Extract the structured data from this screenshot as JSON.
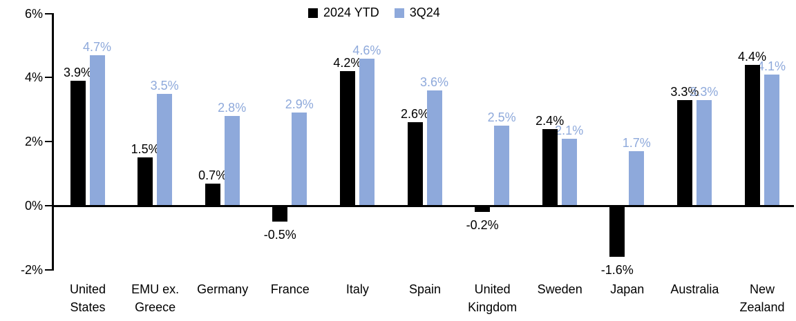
{
  "chart_data": {
    "type": "bar",
    "title": "",
    "categories": [
      "United States",
      "EMU ex. Greece",
      "Germany",
      "France",
      "Italy",
      "Spain",
      "United Kingdom",
      "Sweden",
      "Japan",
      "Australia",
      "New Zealand"
    ],
    "category_label_lines": [
      [
        "United",
        "States"
      ],
      [
        "EMU ex.",
        "Greece"
      ],
      [
        "Germany"
      ],
      [
        "France"
      ],
      [
        "Italy"
      ],
      [
        "Spain"
      ],
      [
        "United",
        "Kingdom"
      ],
      [
        "Sweden"
      ],
      [
        "Japan"
      ],
      [
        "Australia"
      ],
      [
        "New",
        "Zealand"
      ]
    ],
    "series": [
      {
        "name": "2024 YTD",
        "color": "#000000",
        "values": [
          3.9,
          1.5,
          0.7,
          -0.5,
          4.2,
          2.6,
          -0.2,
          2.4,
          -1.6,
          3.3,
          4.4
        ]
      },
      {
        "name": "3Q24",
        "color": "#8EA9DB",
        "values": [
          4.7,
          3.5,
          2.8,
          2.9,
          4.6,
          3.6,
          2.5,
          2.1,
          1.7,
          3.3,
          4.1
        ]
      }
    ],
    "data_labels": true,
    "value_label_suffix": "%",
    "value_label_decimals": 1,
    "y_axis": {
      "ticks": [
        6,
        4,
        2,
        0,
        -2
      ],
      "tick_labels": [
        "6%",
        "4%",
        "2%",
        "0%",
        "-2%"
      ],
      "ylim": [
        -2,
        6
      ]
    },
    "grid": false,
    "legend_position": "top-center",
    "colors": {
      "series_2024_ytd": "#000000",
      "series_3q24": "#8EA9DB",
      "axis": "#000000",
      "background": "#FFFFFF"
    }
  }
}
